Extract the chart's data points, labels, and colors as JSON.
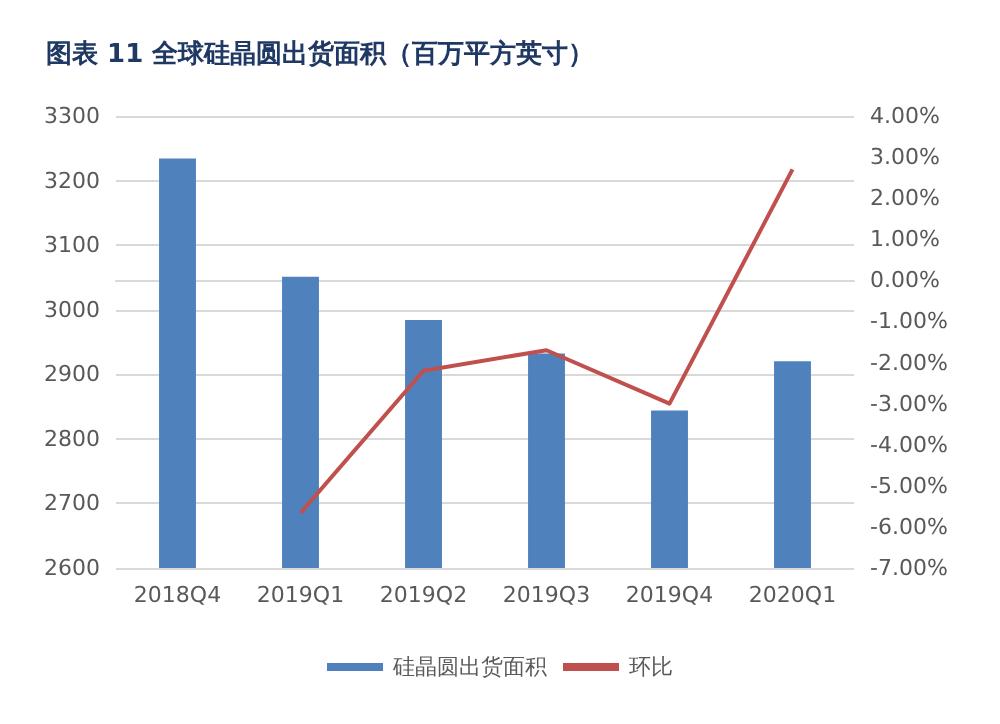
{
  "chart_data": {
    "type": "bar",
    "title": "图表 11 全球硅晶圆出货面积（百万平方英寸）",
    "categories": [
      "2018Q4",
      "2019Q1",
      "2019Q2",
      "2019Q3",
      "2019Q4",
      "2020Q1"
    ],
    "series": [
      {
        "name": "硅晶圆出货面积",
        "color": "#4f81bd",
        "values": [
          3234,
          3051,
          2984,
          2932,
          2844,
          2920
        ]
      },
      {
        "name": "环比",
        "type": "line",
        "axis": "y2",
        "color": "#c0504d",
        "values": [
          null,
          -5.66,
          -2.2,
          -1.7,
          -3.0,
          2.7
        ]
      }
    ],
    "ylim": [
      2600,
      3300
    ],
    "yticks": [
      2600,
      2700,
      2800,
      2900,
      3000,
      3100,
      3200,
      3300
    ],
    "y2lim": [
      -7,
      4
    ],
    "y2ticks": [
      {
        "value": -7,
        "label": "-7.00%"
      },
      {
        "value": -6,
        "label": "-6.00%"
      },
      {
        "value": -5,
        "label": "-5.00%"
      },
      {
        "value": -4,
        "label": "-4.00%"
      },
      {
        "value": -3,
        "label": "-3.00%"
      },
      {
        "value": -2,
        "label": "-2.00%"
      },
      {
        "value": -1,
        "label": "-1.00%"
      },
      {
        "value": 0,
        "label": "0.00%"
      },
      {
        "value": 1,
        "label": "1.00%"
      },
      {
        "value": 2,
        "label": "2.00%"
      },
      {
        "value": 3,
        "label": "3.00%"
      },
      {
        "value": 4,
        "label": "4.00%"
      }
    ],
    "grid": "y",
    "legend": "bottom",
    "marker": "none"
  }
}
